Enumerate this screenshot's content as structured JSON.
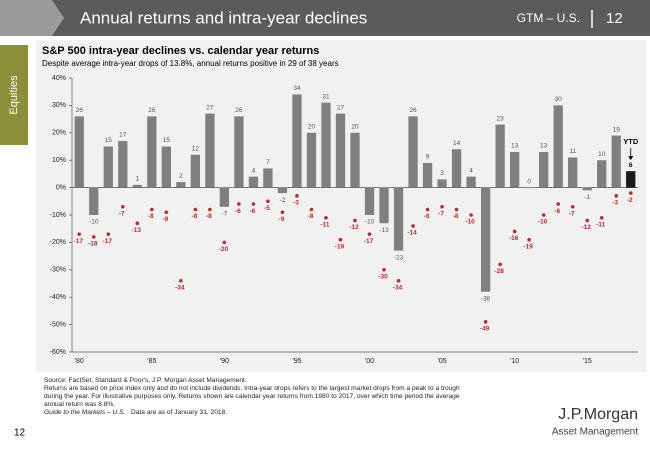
{
  "page": {
    "header_title": "Annual returns and intra-year declines",
    "header_code": "GTM – U.S.",
    "header_page": "12",
    "section": "Equities",
    "footnotes": [
      "Source: FactSet, Standard & Poor's, J.P. Morgan Asset Management.",
      "Returns are based on price index only and do not include dividends. Intra-year drops refers to the largest market drops from a peak to a trough",
      "during the year. For illustrative purposes only. Returns shown are calendar year returns from 1980 to 2017, over which time period the average",
      "annual return was 8.8%."
    ],
    "guide": "Guide to the Markets – U.S.",
    "as_of": "Data are as of January 31, 2018.",
    "brand": "J.P.Morgan",
    "brand_sub": "Asset Management",
    "page_number": "12"
  },
  "chart_data": {
    "type": "bar",
    "title": "S&P 500 intra-year declines vs. calendar year returns",
    "subtitle": "Despite average intra-year drops of 13.8%, annual returns positive in 29 of 38 years",
    "annotation": "YTD",
    "categories": [
      "'80",
      null,
      null,
      null,
      null,
      "'85",
      null,
      null,
      null,
      null,
      "'90",
      null,
      null,
      null,
      null,
      "'95",
      null,
      null,
      null,
      null,
      "'00",
      null,
      null,
      null,
      null,
      "'05",
      null,
      null,
      null,
      null,
      "'10",
      null,
      null,
      null,
      null,
      "'15",
      null,
      null,
      null
    ],
    "series": [
      {
        "type": "bar",
        "color": "#7f7f7f",
        "last_color": "#1a1a1a",
        "values": [
          26,
          -10,
          15,
          17,
          1,
          26,
          15,
          2,
          12,
          27,
          -7,
          26,
          4,
          7,
          -2,
          34,
          20,
          31,
          27,
          20,
          -10,
          -13,
          -23,
          26,
          9,
          3,
          14,
          4,
          -38,
          23,
          13,
          0,
          13,
          30,
          11,
          -1,
          10,
          19,
          6
        ]
      },
      {
        "type": "scatter",
        "color": "#c0282d",
        "values": [
          -17,
          -18,
          -17,
          -7,
          -13,
          -8,
          -9,
          -34,
          -8,
          -8,
          -20,
          -6,
          -6,
          -5,
          -9,
          -3,
          -8,
          -11,
          -19,
          -12,
          -17,
          -30,
          -34,
          -14,
          -8,
          -7,
          -8,
          -10,
          -49,
          -28,
          -16,
          -19,
          -10,
          -6,
          -7,
          -12,
          -11,
          -3,
          -2
        ]
      }
    ],
    "ylim": [
      -60,
      40
    ],
    "yticks": [
      {
        "value": -60,
        "label": "-60%"
      },
      {
        "value": -50,
        "label": "-50%"
      },
      {
        "value": -40,
        "label": "-40%"
      },
      {
        "value": -30,
        "label": "-30%"
      },
      {
        "value": -20,
        "label": "-20%"
      },
      {
        "value": -10,
        "label": "-10%"
      },
      {
        "value": 0,
        "label": "0%"
      },
      {
        "value": 10,
        "label": "10%"
      },
      {
        "value": 20,
        "label": "20%"
      },
      {
        "value": 30,
        "label": "30%"
      },
      {
        "value": 40,
        "label": "40%"
      }
    ]
  }
}
